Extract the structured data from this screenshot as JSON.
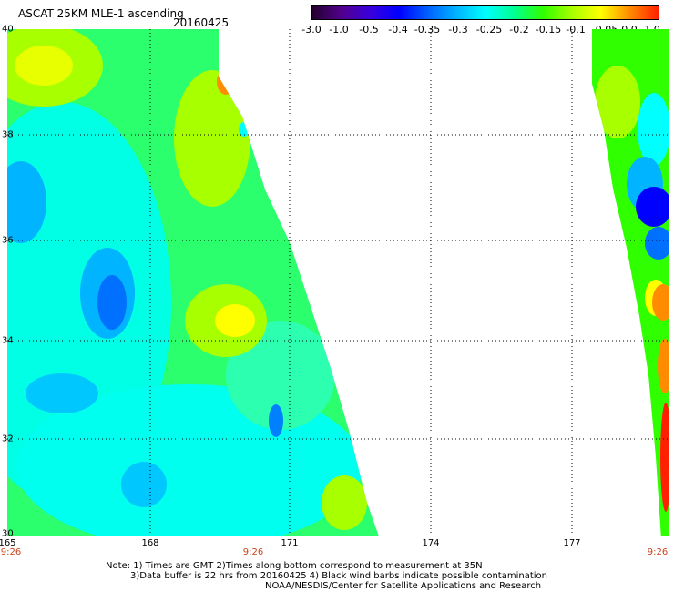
{
  "header": {
    "title": "ASCAT 25KM MLE-1 ascending",
    "date": "20160425"
  },
  "colorbar": {
    "labels": [
      "-3.0",
      "-1.0",
      "-0.5",
      "-0.4",
      "-0.35",
      "-0.3",
      "-0.25",
      "-0.2",
      "-0.15",
      "-0.1",
      "-0.05",
      "0.0",
      "1.0"
    ],
    "colors": [
      "#24002e",
      "#52008c",
      "#3a00dc",
      "#0000ff",
      "#0060ff",
      "#00b4ff",
      "#00ffff",
      "#00ff90",
      "#30ff00",
      "#a8ff00",
      "#ffff00",
      "#ff8c00",
      "#ff2000"
    ]
  },
  "map": {
    "lat_labels": [
      "40",
      "38",
      "36",
      "34",
      "32",
      "30"
    ],
    "lon_labels": [
      "165",
      "168",
      "171",
      "174",
      "177"
    ],
    "time_labels": [
      "9:26",
      "9:26",
      "9:26"
    ]
  },
  "notes": [
    "Note: 1) Times are GMT 2)Times along bottom correspond to measurement at 35N",
    "3)Data buffer is 22 hrs from 20160425 4) Black wind barbs indicate possible contamination",
    "NOAA/NESDIS/Center for Satellite Applications and Research"
  ]
}
